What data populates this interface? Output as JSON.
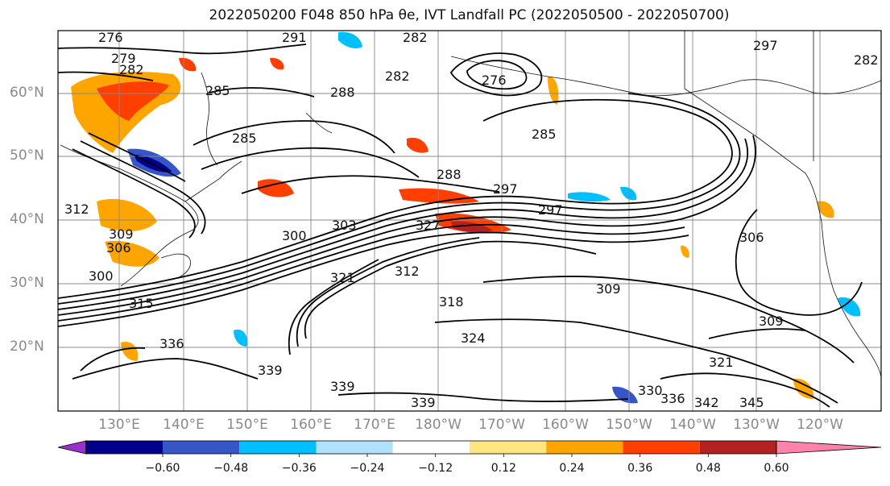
{
  "title": "2022050200 F048 850 hPa θe, IVT Landfall PC (2022050500 - 2022050700)",
  "lat_labels": [
    "60°N",
    "50°N",
    "40°N",
    "30°N",
    "20°N"
  ],
  "lon_labels": [
    "130°E",
    "140°E",
    "150°E",
    "160°E",
    "170°E",
    "180°W",
    "170°W",
    "160°W",
    "150°W",
    "140°W",
    "130°W",
    "120°W"
  ],
  "colorbar": {
    "ticks": [
      "−0.60",
      "−0.48",
      "−0.36",
      "−0.24",
      "−0.12",
      "0.12",
      "0.24",
      "0.36",
      "0.48",
      "0.60"
    ],
    "colors": [
      "#9932cc",
      "#00008b",
      "#3656c8",
      "#00bfff",
      "#b0e2ff",
      "#ffffff",
      "#ffe680",
      "#ffa500",
      "#ff3f00",
      "#b22222",
      "#ff82ab"
    ]
  },
  "contour_labels": [
    "276",
    "279",
    "282",
    "285",
    "288",
    "291",
    "297",
    "300",
    "303",
    "306",
    "309",
    "312",
    "315",
    "318",
    "321",
    "324",
    "327",
    "330",
    "336",
    "339",
    "342",
    "345"
  ]
}
